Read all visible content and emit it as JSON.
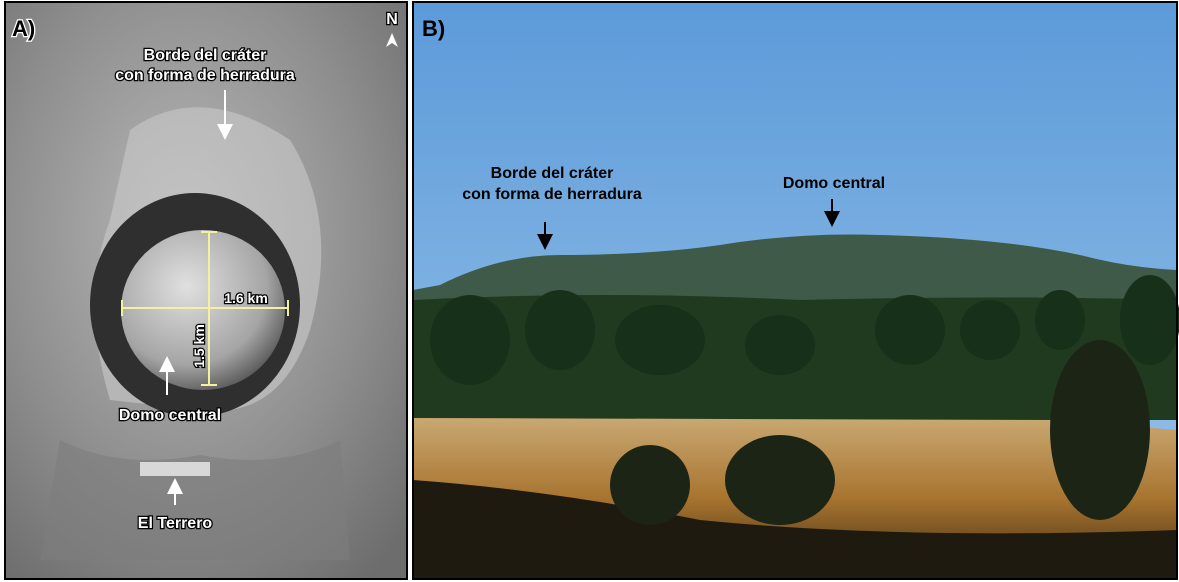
{
  "panel_a": {
    "label": "A)",
    "north": "N",
    "rim_label": [
      "Borde del cráter",
      "con forma de herradura"
    ],
    "scale_horizontal": "1.6 km",
    "scale_vertical": "1.5 km",
    "dome_label": "Domo central",
    "terrero_label": "El Terrero"
  },
  "panel_b": {
    "label": "B)",
    "rim_label": [
      "Borde del cráter",
      "con forma de herradura"
    ],
    "dome_label": "Domo central"
  }
}
